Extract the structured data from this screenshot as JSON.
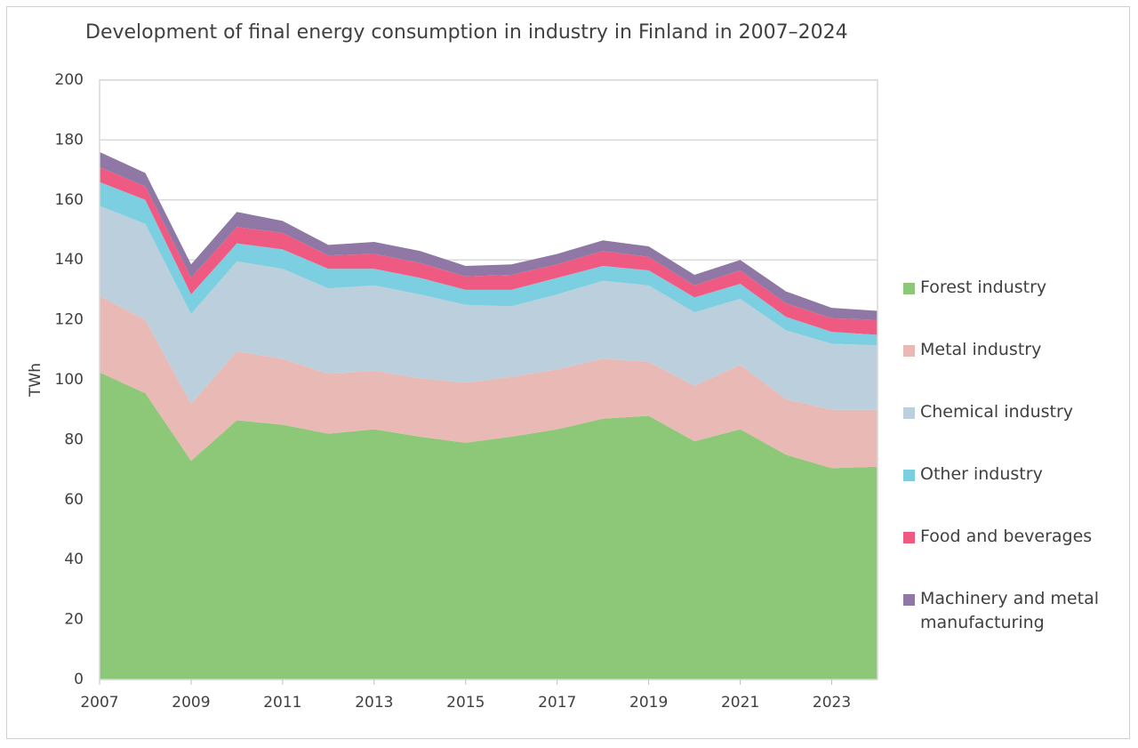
{
  "chart_data": {
    "type": "stacked-area",
    "title": "Development of final energy consumption in industry in Finland in 2007–2024",
    "y_label": "TWh",
    "x": [
      2007,
      2008,
      2009,
      2010,
      2011,
      2012,
      2013,
      2014,
      2015,
      2016,
      2017,
      2018,
      2019,
      2020,
      2021,
      2022,
      2023,
      2024
    ],
    "xlim": [
      2007,
      2024
    ],
    "xticks": [
      2007,
      2009,
      2011,
      2013,
      2015,
      2017,
      2019,
      2021,
      2023
    ],
    "ylim": [
      0,
      200
    ],
    "yticks": [
      0,
      20,
      40,
      60,
      80,
      100,
      120,
      140,
      160,
      180,
      200
    ],
    "grid": true,
    "legend": "right",
    "series": [
      {
        "name": "Forest industry",
        "color": "#8dc878",
        "values": [
          102.5,
          95.5,
          73,
          86.5,
          85,
          82,
          83.5,
          81,
          79,
          81,
          83.5,
          87,
          88,
          79.5,
          83.5,
          75,
          70.5,
          71
        ]
      },
      {
        "name": "Metal industry",
        "color": "#e9b9b5",
        "values": [
          25.5,
          24.5,
          19,
          23,
          22,
          20,
          19.5,
          19.5,
          20,
          20,
          20,
          20,
          18,
          18.5,
          21.5,
          18.5,
          19.5,
          19
        ]
      },
      {
        "name": "Chemical industry",
        "color": "#bccfdc",
        "values": [
          30,
          32,
          30,
          30,
          30,
          28.5,
          28.5,
          28,
          26,
          23.5,
          25,
          26,
          25.5,
          24.5,
          22,
          23,
          22,
          21.5
        ]
      },
      {
        "name": "Other industry",
        "color": "#7ccfe0",
        "values": [
          8,
          8,
          6.5,
          6,
          6.5,
          6.5,
          5.5,
          5.5,
          5,
          5.5,
          5.5,
          5,
          5,
          5,
          5,
          4.5,
          4,
          3.5
        ]
      },
      {
        "name": "Food and beverages",
        "color": "#ef5a83",
        "values": [
          5,
          4.5,
          5.5,
          5.5,
          5.5,
          4.5,
          5,
          5,
          4.5,
          5,
          4.5,
          5,
          4.5,
          4,
          4.5,
          4.5,
          4.5,
          5
        ]
      },
      {
        "name": "Machinery and metal manufacturing",
        "color": "#8f78a5",
        "values": [
          5,
          4.5,
          4.5,
          5,
          4,
          3.5,
          4,
          4,
          3.5,
          3.5,
          3.5,
          3.5,
          3.5,
          3.5,
          3.5,
          4,
          3.5,
          3
        ]
      }
    ]
  }
}
